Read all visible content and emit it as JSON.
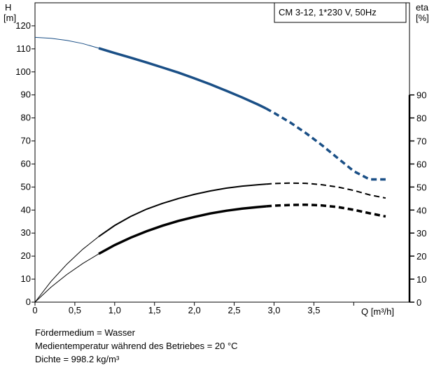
{
  "chart_data": {
    "type": "line",
    "title": "CM 3-12, 1*230 V, 50Hz",
    "left_axis": {
      "label_line1": "H",
      "label_line2": "[m]",
      "range": [
        0,
        130
      ],
      "ticks": [
        0,
        10,
        20,
        30,
        40,
        50,
        60,
        70,
        80,
        90,
        100,
        110,
        120
      ]
    },
    "right_axis": {
      "label_line1": "eta",
      "label_line2": "[%]",
      "range": [
        0,
        130
      ],
      "ticks": [
        0,
        10,
        20,
        30,
        40,
        50,
        60,
        70,
        80,
        90
      ]
    },
    "x_axis": {
      "label": "Q [m³/h]",
      "range": [
        0,
        4.7
      ],
      "ticks": [
        0,
        0.5,
        1.0,
        1.5,
        2.0,
        2.5,
        3.0,
        3.5
      ],
      "tick_labels": [
        "0",
        "0,5",
        "1,0",
        "1,5",
        "2,0",
        "2,5",
        "3,0",
        "3,5"
      ]
    },
    "grid": false,
    "series": [
      {
        "axis": "left",
        "color": "#1a4f86",
        "x": [
          0,
          0.2,
          0.4,
          0.6,
          0.8,
          1.0,
          1.2,
          1.4,
          1.6,
          1.8,
          2.0,
          2.2,
          2.4,
          2.6,
          2.8,
          2.9,
          3.0,
          3.2,
          3.4,
          3.6,
          3.8,
          4.0,
          4.2,
          4.4
        ],
        "y": [
          115,
          114.6,
          113.7,
          112.3,
          110.3,
          108.2,
          106.2,
          104.1,
          101.9,
          99.7,
          97.2,
          94.6,
          91.8,
          88.9,
          85.8,
          84.1,
          82.2,
          78.1,
          73.4,
          68.2,
          62.5,
          56.9,
          53.3,
          53.3
        ],
        "solid_range": [
          0.8,
          2.9
        ],
        "dashed_from": 2.9
      },
      {
        "axis": "right",
        "color": "#000000",
        "x": [
          0,
          0.2,
          0.4,
          0.6,
          0.8,
          1.0,
          1.2,
          1.4,
          1.6,
          1.8,
          2.0,
          2.2,
          2.4,
          2.6,
          2.8,
          3.0,
          3.2,
          3.4,
          3.6,
          3.8,
          4.0,
          4.2,
          4.4
        ],
        "y": [
          0,
          9,
          16.5,
          23,
          28.5,
          33.3,
          37.2,
          40.4,
          42.9,
          45,
          46.8,
          48.3,
          49.5,
          50.4,
          51,
          51.5,
          51.7,
          51.6,
          51,
          50,
          48.5,
          46.6,
          45.2
        ],
        "solid_range": [
          0.8,
          2.9
        ],
        "dashed_from": 2.9
      },
      {
        "axis": "right",
        "color": "#000000",
        "x": [
          0,
          0.2,
          0.4,
          0.6,
          0.8,
          1.0,
          1.2,
          1.4,
          1.6,
          1.8,
          2.0,
          2.2,
          2.4,
          2.6,
          2.8,
          3.0,
          3.2,
          3.4,
          3.6,
          3.8,
          4.0,
          4.2,
          4.4
        ],
        "y": [
          0,
          6.5,
          12,
          16.8,
          21,
          24.8,
          28,
          30.8,
          33.2,
          35.3,
          37,
          38.5,
          39.7,
          40.6,
          41.3,
          41.9,
          42.2,
          42.3,
          42,
          41.3,
          40.1,
          38.6,
          37.2
        ],
        "solid_range": [
          0.8,
          2.9
        ],
        "dashed_from": 2.9
      }
    ]
  },
  "notes": {
    "medium": "Fördermedium = Wasser",
    "temperature": "Medientemperatur während des Betriebes = 20 °C",
    "density": "Dichte = 998.2 kg/m³"
  }
}
